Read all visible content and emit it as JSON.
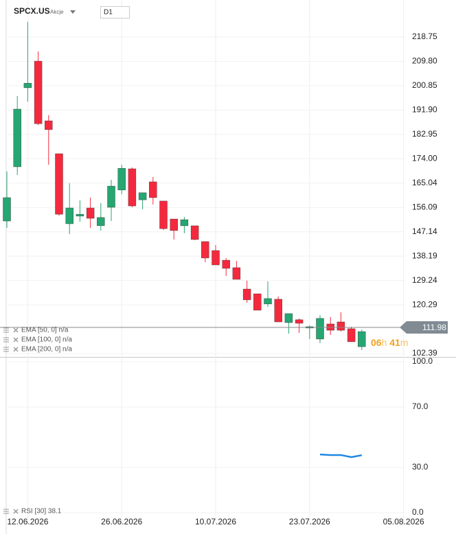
{
  "chart_data": [
    {
      "type": "candlestick",
      "title": "SPCX.US",
      "subtitle": "Akcje",
      "timeframe": "D1",
      "open": [
        151.1,
        171.05,
        200.1,
        209.9,
        187.95,
        175.85,
        150.1,
        152.9,
        155.9,
        149.4,
        156.15,
        162.5,
        170.3,
        158.9,
        165.5,
        158.45,
        151.85,
        149.35,
        149.35,
        143.55,
        140.25,
        136.7,
        133.95,
        126.1,
        124.35,
        120.6,
        122.35,
        113.75,
        114.8,
        111.75,
        107.7,
        113.25,
        114.0,
        111.5,
        104.9,
        null,
        null,
        null,
        null
      ],
      "high": [
        169.3,
        197.05,
        224.3,
        213.45,
        190.0,
        175.85,
        165.0,
        158.7,
        159.7,
        157.7,
        166.25,
        171.8,
        170.8,
        161.5,
        167.3,
        158.45,
        151.85,
        152.6,
        149.35,
        143.55,
        142.3,
        137.5,
        136.45,
        129.15,
        124.35,
        128.9,
        123.35,
        117.05,
        115.3,
        112.75,
        116.5,
        115.8,
        117.55,
        112.25,
        111.2,
        null,
        null,
        null,
        null
      ],
      "low": [
        148.6,
        168.0,
        195.0,
        186.4,
        171.8,
        153.1,
        146.3,
        150.85,
        148.6,
        147.6,
        151.1,
        161.0,
        156.15,
        155.4,
        157.2,
        147.8,
        144.3,
        146.6,
        144.05,
        135.95,
        134.95,
        130.9,
        129.65,
        121.05,
        118.3,
        119.55,
        114.0,
        109.7,
        109.95,
        107.7,
        106.2,
        109.2,
        110.45,
        106.7,
        103.65,
        null,
        null,
        null,
        null
      ],
      "close": [
        159.7,
        192.25,
        201.8,
        186.9,
        184.7,
        153.6,
        155.9,
        153.6,
        152.1,
        152.4,
        163.95,
        170.5,
        156.65,
        161.5,
        159.7,
        148.3,
        147.6,
        151.6,
        144.3,
        137.5,
        134.95,
        133.7,
        129.65,
        122.1,
        118.3,
        122.6,
        114.0,
        117.05,
        113.5,
        112.25,
        115.3,
        110.95,
        110.95,
        106.7,
        110.45,
        null,
        null,
        null,
        null
      ],
      "up_color": "#26a671",
      "down_color": "#f5293e",
      "ylim": [
        101.13,
        232.38
      ],
      "yticks": [
        218.75,
        {
          "value": 209.8,
          "label": "209.80"
        },
        200.85,
        {
          "value": 191.9,
          "label": "191.90"
        },
        182.95,
        {
          "value": 174.0,
          "label": "174.00"
        },
        165.04,
        156.09,
        147.14,
        138.19,
        129.24,
        120.29,
        102.39
      ],
      "grid": true,
      "last_price": 111.98,
      "countdown": {
        "hours": "06",
        "hours_unit": "h",
        "minutes": "41",
        "minutes_unit": "m"
      },
      "indicators": [
        "EMA [50, 0] n/a",
        "EMA [100, 0] n/a",
        "EMA [200, 0] n/a"
      ]
    },
    {
      "type": "line",
      "categories": [
        null,
        null,
        "12.06.2026",
        null,
        null,
        null,
        null,
        null,
        null,
        null,
        null,
        "26.06.2026",
        null,
        null,
        null,
        null,
        null,
        null,
        null,
        null,
        "10.07.2026",
        null,
        null,
        null,
        null,
        null,
        null,
        null,
        null,
        "23.07.2026",
        null,
        null,
        null,
        null,
        null,
        null,
        null,
        null,
        "05.08.2026"
      ],
      "series": [
        {
          "name": "RSI [30] 38.1",
          "color": "#1e88e5",
          "values": [
            null,
            null,
            null,
            null,
            null,
            null,
            null,
            null,
            null,
            null,
            null,
            null,
            null,
            null,
            null,
            null,
            null,
            null,
            null,
            null,
            null,
            null,
            null,
            null,
            null,
            null,
            null,
            null,
            null,
            null,
            38.6,
            38.2,
            38.2,
            36.8,
            38.1,
            null,
            null,
            null,
            null
          ]
        }
      ],
      "ylim": [
        -8.2,
        103.2
      ],
      "yticks": [
        {
          "value": 100,
          "label": "100.0"
        },
        {
          "value": 70,
          "label": "70.0"
        },
        {
          "value": 30,
          "label": "30.0"
        },
        {
          "value": 0,
          "label": "0.0"
        }
      ],
      "grid": true
    }
  ]
}
